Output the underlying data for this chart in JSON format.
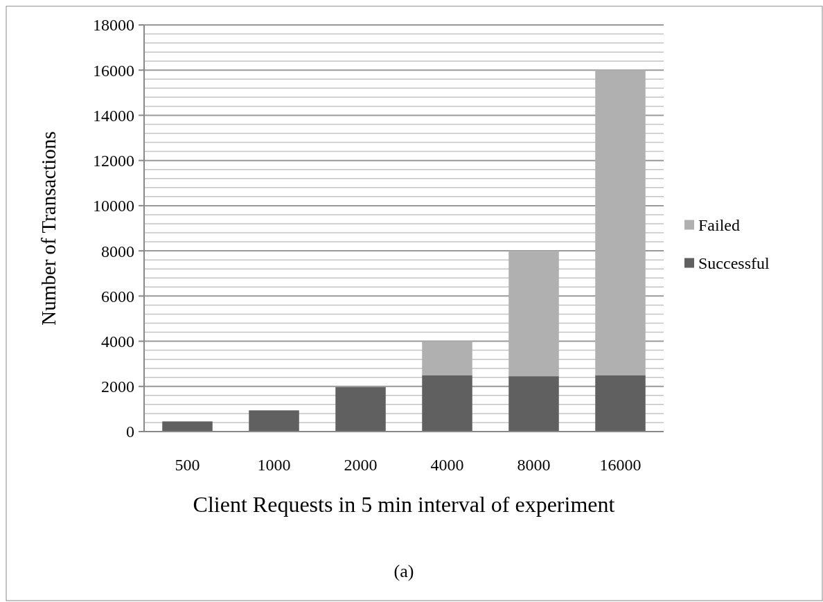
{
  "chart_data": {
    "type": "bar",
    "stacked": true,
    "categories": [
      "500",
      "1000",
      "2000",
      "4000",
      "8000",
      "16000"
    ],
    "series": [
      {
        "name": "Successful",
        "color": "#606060",
        "values": [
          450,
          940,
          1970,
          2500,
          2450,
          2500
        ]
      },
      {
        "name": "Failed",
        "color": "#b0b0b0",
        "values": [
          0,
          0,
          0,
          1500,
          5550,
          13500
        ]
      }
    ],
    "xlabel": "Client Requests in 5 min interval of experiment",
    "ylabel": "Number of Transactions",
    "annotations": [
      "(a)"
    ],
    "ylim": [
      0,
      18000
    ],
    "yticks": [
      0,
      {
        "value": 400,
        "label": null
      },
      {
        "value": 800,
        "label": null
      },
      {
        "value": 1200,
        "label": null
      },
      {
        "value": 1600,
        "label": null
      },
      2000,
      {
        "value": 2400,
        "label": null
      },
      {
        "value": 2800,
        "label": null
      },
      {
        "value": 3200,
        "label": null
      },
      {
        "value": 3600,
        "label": null
      },
      4000,
      {
        "value": 4400,
        "label": null
      },
      {
        "value": 4800,
        "label": null
      },
      {
        "value": 5200,
        "label": null
      },
      {
        "value": 5600,
        "label": null
      },
      6000,
      {
        "value": 6400,
        "label": null
      },
      {
        "value": 6800,
        "label": null
      },
      {
        "value": 7200,
        "label": null
      },
      {
        "value": 7600,
        "label": null
      },
      8000,
      {
        "value": 8400,
        "label": null
      },
      {
        "value": 8800,
        "label": null
      },
      {
        "value": 9200,
        "label": null
      },
      {
        "value": 9600,
        "label": null
      },
      10000,
      {
        "value": 10400,
        "label": null
      },
      {
        "value": 10800,
        "label": null
      },
      {
        "value": 11200,
        "label": null
      },
      {
        "value": 11600,
        "label": null
      },
      12000,
      {
        "value": 12400,
        "label": null
      },
      {
        "value": 12800,
        "label": null
      },
      {
        "value": 13200,
        "label": null
      },
      {
        "value": 13600,
        "label": null
      },
      14000,
      {
        "value": 14400,
        "label": null
      },
      {
        "value": 14800,
        "label": null
      },
      {
        "value": 15200,
        "label": null
      },
      {
        "value": 15600,
        "label": null
      },
      16000,
      {
        "value": 16400,
        "label": null
      },
      {
        "value": 16800,
        "label": null
      },
      {
        "value": 17200,
        "label": null
      },
      {
        "value": 17600,
        "label": null
      },
      18000
    ],
    "grid": true,
    "legend": "right"
  }
}
